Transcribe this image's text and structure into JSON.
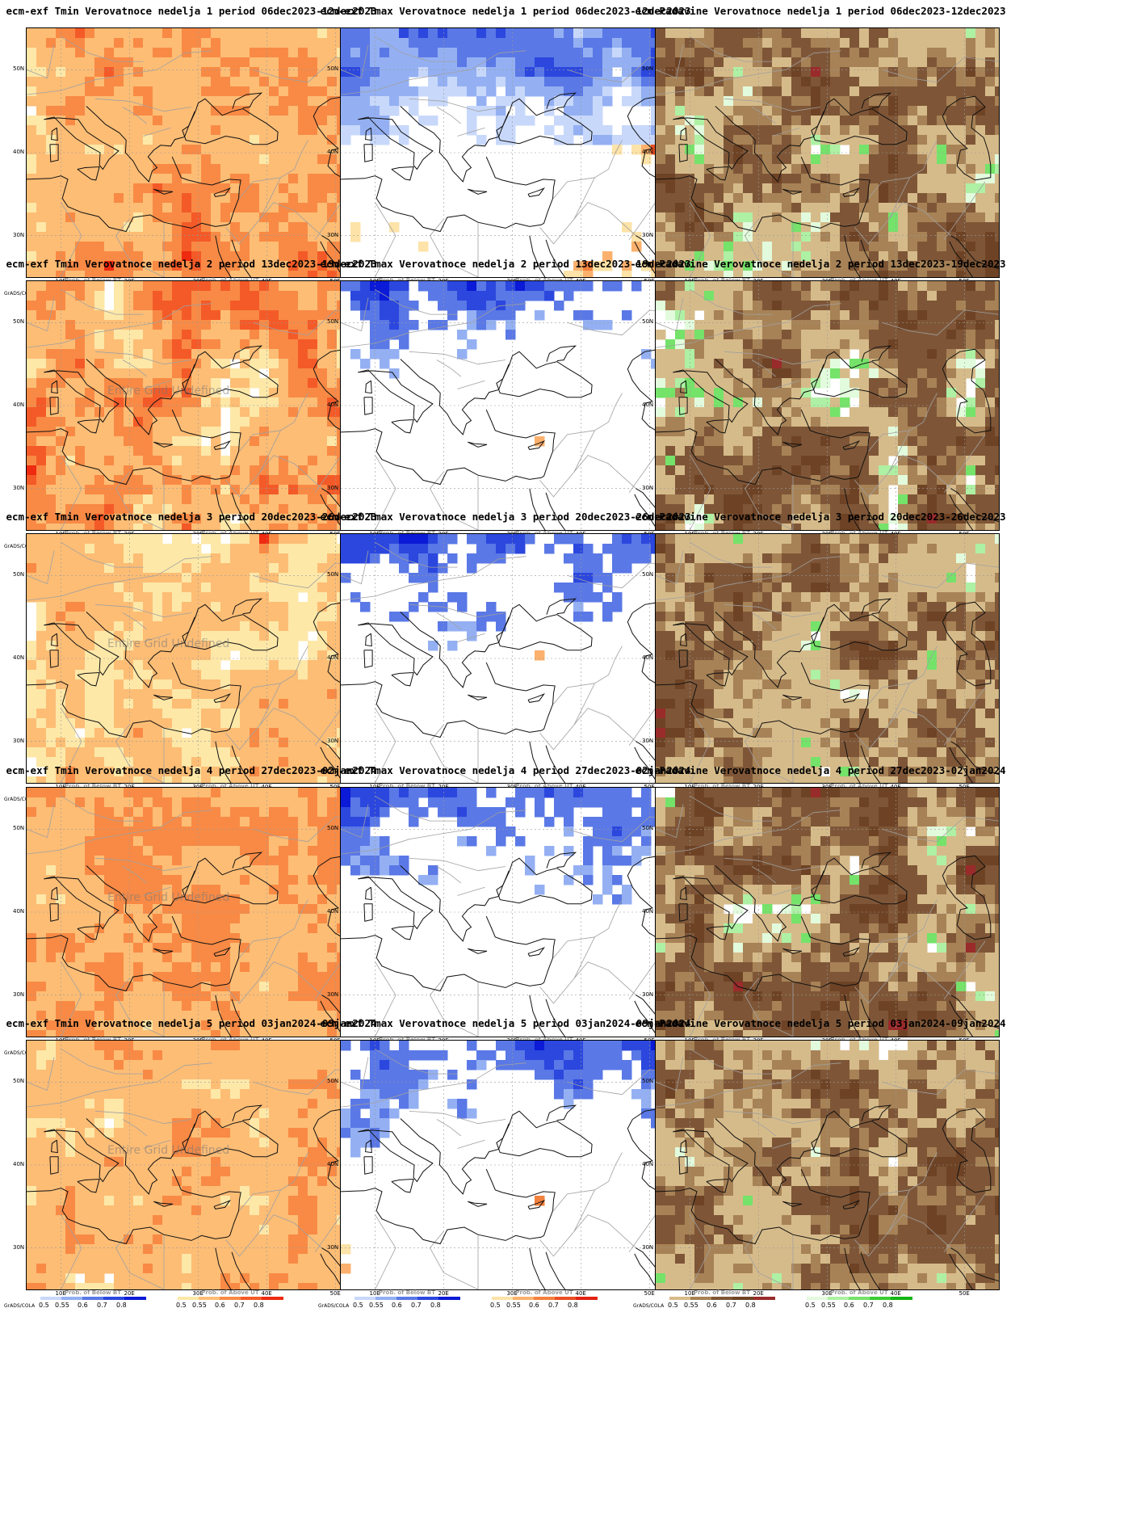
{
  "colors": {
    "tmin": [
      "#fde8a8",
      "#fdbd75",
      "#f88a45",
      "#f45a28",
      "#ee2a10"
    ],
    "tmax_cold": [
      "#c8d8fb",
      "#94b0f3",
      "#5a78e6",
      "#2b47de",
      "#0a1ad6"
    ],
    "tmax_warm": [
      "#fde3a8",
      "#fbb16d",
      "#f3813e",
      "#ea4f24",
      "#e32212"
    ],
    "prec_dry": [
      "#d6bb8a",
      "#a78256",
      "#7e5637",
      "#6e4325",
      "#9a2b2b"
    ],
    "prec_wet": [
      "#e2fbdd",
      "#aef0a4",
      "#75e26a",
      "#3ccd33",
      "#14b514"
    ]
  },
  "map": {
    "ylabels": [
      "50N",
      "40N",
      "30N"
    ],
    "xlabels": [
      "10E",
      "20E",
      "30E",
      "40E",
      "50E"
    ]
  },
  "legend": {
    "below": "Prob. of Below BT",
    "above": "Prob. of Above UT",
    "ticks": [
      "0.5",
      "0.55",
      "0.6",
      "0.7",
      "0.8"
    ],
    "grads": "GrADS/COLA"
  },
  "watermark": "Entire Grid Undefined",
  "panels": [
    {
      "title": "ecm-exf Tmin Verovatnoce nedelja 1 period 06dec2023-12dec2023",
      "kind": "tmin",
      "p": [
        0.05,
        0.15,
        0.35,
        0.25,
        0.2
      ],
      "watermark": false
    },
    {
      "title": "ecm-exf Tmax Verovatnoce nedelja 1 period 06dec2023-12dec2023",
      "kind": "tmax",
      "p": [
        0.25,
        0.35,
        0.1,
        0.1,
        0.2
      ],
      "watermark": false
    },
    {
      "title": "ecm-Padavine Verovatnoce nedelja 1 period 06dec2023-12dec2023",
      "kind": "prec",
      "p": [
        0.4,
        0.1,
        0.2,
        0.15,
        0.15
      ],
      "watermark": false
    },
    {
      "title": "ecm-exf Tmin Verovatnoce nedelja 2 period 13dec2023-19dec2023",
      "kind": "tmin",
      "p": [
        0.15,
        0.15,
        0.25,
        0.2,
        0.25
      ],
      "watermark": true
    },
    {
      "title": "ecm-exf Tmax Verovatnoce nedelja 2 period 13dec2023-19dec2023",
      "kind": "tmax",
      "p": [
        0.62,
        0.15,
        0.1,
        0.06,
        0.07
      ],
      "watermark": false
    },
    {
      "title": "ecm-Padavine Verovatnoce nedelja 2 period 13dec2023-19dec2023",
      "kind": "prec",
      "p": [
        0.25,
        0.2,
        0.35,
        0.15,
        0.05
      ],
      "watermark": false
    },
    {
      "title": "ecm-exf Tmin Verovatnoce nedelja 3 period 20dec2023-26dec2023",
      "kind": "tmin",
      "p": [
        0.2,
        0.25,
        0.35,
        0.15,
        0.05
      ],
      "watermark": true
    },
    {
      "title": "ecm-exf Tmax Verovatnoce nedelja 3 period 20dec2023-26dec2023",
      "kind": "tmax",
      "p": [
        0.75,
        0.13,
        0.06,
        0.03,
        0.03
      ],
      "watermark": false
    },
    {
      "title": "ecm-Padavine Verovatnoce nedelja 3 period 20dec2023-26dec2023",
      "kind": "prec",
      "p": [
        0.15,
        0.1,
        0.55,
        0.1,
        0.1
      ],
      "watermark": false
    },
    {
      "title": "ecm-exf Tmin Verovatnoce nedelja 4 period 27dec2023-02jan2024",
      "kind": "tmin",
      "p": [
        0.02,
        0.05,
        0.45,
        0.4,
        0.08
      ],
      "watermark": true
    },
    {
      "title": "ecm-exf Tmax Verovatnoce nedelja 4 period 27dec2023-02jan2024",
      "kind": "tmax",
      "p": [
        0.72,
        0.15,
        0.08,
        0.03,
        0.02
      ],
      "watermark": false
    },
    {
      "title": "ecm-Padavine Verovatnoce nedelja 4 period 27dec2023-02jan2024",
      "kind": "prec",
      "p": [
        0.2,
        0.2,
        0.3,
        0.2,
        0.1
      ],
      "watermark": false
    },
    {
      "title": "ecm-exf Tmin Verovatnoce nedelja 5 period 03jan2024-09jan2024",
      "kind": "tmin",
      "p": [
        0.08,
        0.15,
        0.45,
        0.25,
        0.07
      ],
      "watermark": true
    },
    {
      "title": "ecm-exf Tmax Verovatnoce nedelja 5 period 03jan2024-09jan2024",
      "kind": "tmax",
      "p": [
        0.68,
        0.17,
        0.08,
        0.04,
        0.03
      ],
      "watermark": false
    },
    {
      "title": "ecm-Padavine Verovatnoce nedelja 5 period 03jan2024-09jan2024",
      "kind": "prec",
      "p": [
        0.2,
        0.1,
        0.45,
        0.15,
        0.1
      ],
      "watermark": false
    }
  ]
}
